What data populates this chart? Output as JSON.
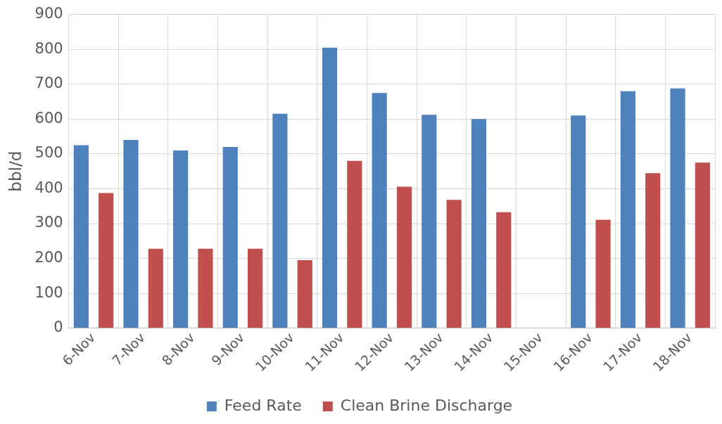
{
  "chart_data": {
    "type": "bar",
    "ylabel": "bbl/d",
    "categories": [
      "6-Nov",
      "7-Nov",
      "8-Nov",
      "9-Nov",
      "10-Nov",
      "11-Nov",
      "12-Nov",
      "13-Nov",
      "14-Nov",
      "15-Nov",
      "16-Nov",
      "17-Nov",
      "18-Nov"
    ],
    "series": [
      {
        "name": "Feed Rate",
        "color": "#4f81bd",
        "values": [
          525,
          540,
          510,
          520,
          615,
          805,
          675,
          612,
          600,
          null,
          610,
          680,
          688
        ]
      },
      {
        "name": "Clean Brine Discharge",
        "color": "#c0504d",
        "values": [
          388,
          228,
          228,
          228,
          195,
          480,
          406,
          368,
          333,
          null,
          311,
          445,
          475
        ]
      }
    ],
    "ylim": [
      0,
      900
    ],
    "yticks": [
      0,
      100,
      200,
      300,
      400,
      500,
      600,
      700,
      800,
      900
    ],
    "grid": true,
    "legend": "bottom"
  }
}
